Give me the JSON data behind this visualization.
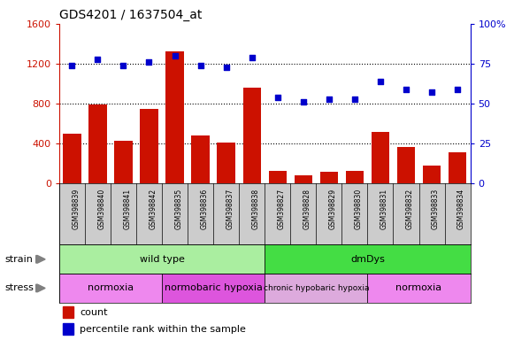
{
  "title": "GDS4201 / 1637504_at",
  "samples": [
    "GSM398839",
    "GSM398840",
    "GSM398841",
    "GSM398842",
    "GSM398835",
    "GSM398836",
    "GSM398837",
    "GSM398838",
    "GSM398827",
    "GSM398828",
    "GSM398829",
    "GSM398830",
    "GSM398831",
    "GSM398832",
    "GSM398833",
    "GSM398834"
  ],
  "counts": [
    500,
    790,
    430,
    750,
    1320,
    480,
    415,
    960,
    130,
    80,
    120,
    130,
    520,
    370,
    180,
    310
  ],
  "percentile": [
    74,
    78,
    74,
    76,
    80,
    74,
    73,
    79,
    54,
    51,
    53,
    53,
    64,
    59,
    57,
    59
  ],
  "ylim_left": [
    0,
    1600
  ],
  "ylim_right": [
    0,
    100
  ],
  "yticks_left": [
    0,
    400,
    800,
    1200,
    1600
  ],
  "yticks_right": [
    0,
    25,
    50,
    75,
    100
  ],
  "bar_color": "#cc1100",
  "scatter_color": "#0000cc",
  "strain_groups": [
    {
      "label": "wild type",
      "start": 0,
      "end": 8,
      "color": "#aaeea0"
    },
    {
      "label": "dmDys",
      "start": 8,
      "end": 16,
      "color": "#44dd44"
    }
  ],
  "stress_groups": [
    {
      "label": "normoxia",
      "start": 0,
      "end": 4,
      "color": "#ee88ee"
    },
    {
      "label": "normobaric hypoxia",
      "start": 4,
      "end": 8,
      "color": "#dd55dd"
    },
    {
      "label": "chronic hypobaric hypoxia",
      "start": 8,
      "end": 12,
      "color": "#ddaadd"
    },
    {
      "label": "normoxia",
      "start": 12,
      "end": 16,
      "color": "#ee88ee"
    }
  ],
  "legend_count_label": "count",
  "legend_pct_label": "percentile rank within the sample",
  "tick_area_color": "#cccccc",
  "background_color": "#ffffff"
}
